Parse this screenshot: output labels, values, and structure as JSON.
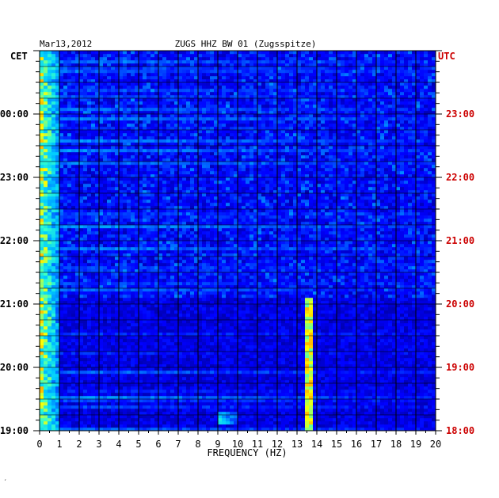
{
  "header": {
    "date": "Mar13,2012",
    "station": "ZUGS HHZ BW 01 (Zugsspitze)",
    "left_zone": "CET",
    "right_zone": "UTC"
  },
  "colors": {
    "left_axis_text": "#000000",
    "right_axis_text": "#cc0000",
    "plot_background": "#00008b"
  },
  "footer": {
    "mark": "′"
  },
  "chart_data": {
    "type": "heatmap",
    "title": "ZUGS HHZ BW 01 (Zugsspitze)",
    "xlabel": "FREQUENCY (HZ)",
    "x_ticks": [
      "0",
      "1",
      "2",
      "3",
      "4",
      "5",
      "6",
      "7",
      "8",
      "9",
      "10",
      "11",
      "12",
      "13",
      "14",
      "15",
      "16",
      "17",
      "18",
      "19",
      "20"
    ],
    "xlim": [
      0,
      20
    ],
    "left_y_ticks": [
      "00:00",
      "23:00",
      "22:00",
      "21:00",
      "20:00",
      "19:00"
    ],
    "right_y_ticks": [
      "23:00",
      "22:00",
      "21:00",
      "20:00",
      "19:00",
      "18:00"
    ],
    "y_tick_hours_local": [
      24,
      23,
      22,
      21,
      20,
      19
    ],
    "time_range_local": [
      19,
      25
    ],
    "colormap": [
      "#00008b",
      "#0000ff",
      "#0066ff",
      "#00ccff",
      "#33ffcc",
      "#ffff00",
      "#ff8800",
      "#ff0000"
    ],
    "features": [
      {
        "name": "low-frequency energy",
        "freq_hz": [
          0,
          1
        ],
        "time_local": [
          19,
          25
        ],
        "level": 0.85
      },
      {
        "name": "persistent spectral line",
        "freq_hz": 13.6,
        "time_local": [
          19,
          21.1
        ],
        "level": 0.8
      },
      {
        "name": "short burst",
        "freq_hz": [
          9,
          10
        ],
        "time_local": [
          19.1,
          19.3
        ],
        "level": 0.6
      },
      {
        "name": "elevated broadband noise",
        "freq_hz": [
          0,
          20
        ],
        "time_local": [
          21.1,
          25
        ],
        "level": 0.35
      }
    ],
    "grid": true
  }
}
